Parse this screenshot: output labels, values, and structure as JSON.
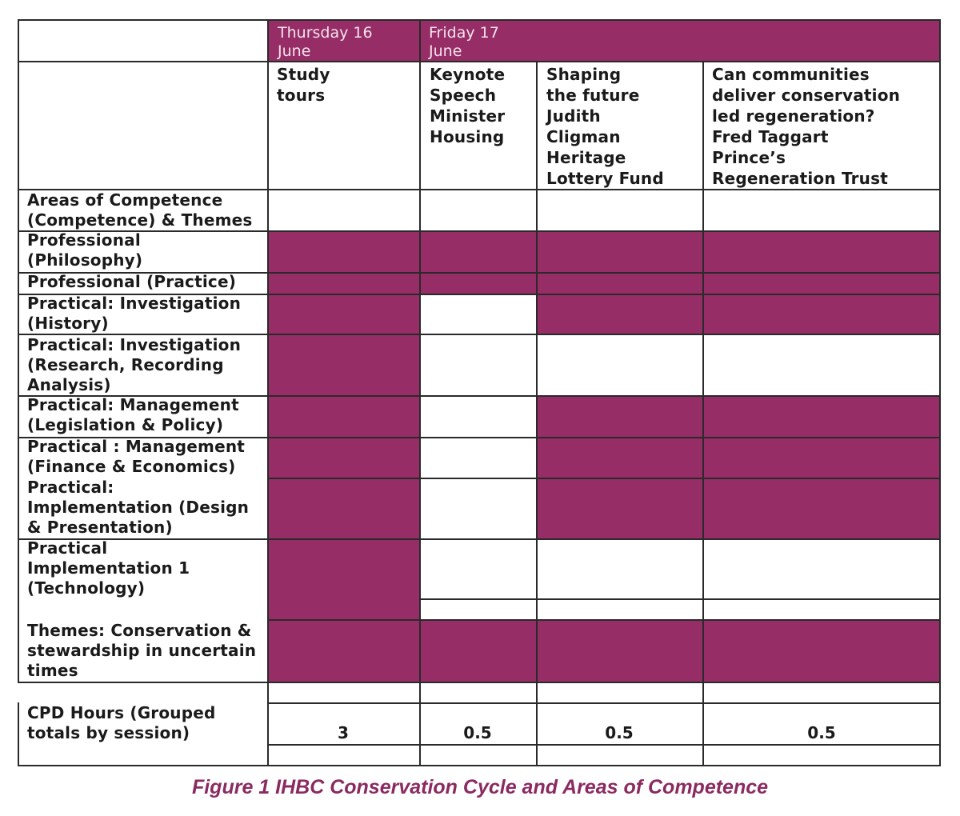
{
  "header": {
    "days": [
      "Thursday 16\nJune",
      "Friday 17\nJune"
    ]
  },
  "sessions": [
    "Study\ntours",
    "Keynote\nSpeech\nMinister\nHousing",
    "Shaping\nthe future\nJudith\nCligman\nHeritage\nLottery Fund",
    "Can communities\ndeliver conservation\nled regeneration?\nFred Taggart\nPrince’s\nRegeneration Trust"
  ],
  "rows": [
    {
      "label": "Areas of Competence\n(Competence) & Themes",
      "cells": [
        false,
        false,
        false,
        false
      ]
    },
    {
      "label": "Professional\n(Philosophy)",
      "cells": [
        true,
        true,
        true,
        true
      ]
    },
    {
      "label": "Professional (Practice)",
      "cells": [
        true,
        true,
        true,
        true
      ]
    },
    {
      "label": "Practical: Investigation\n(History)",
      "cells": [
        true,
        false,
        true,
        true
      ]
    },
    {
      "label": "Practical: Investigation\n(Research, Recording\nAnalysis)",
      "cells": [
        true,
        false,
        false,
        false
      ]
    },
    {
      "label": "Practical: Management\n(Legislation & Policy)",
      "cells": [
        true,
        false,
        true,
        true
      ]
    },
    {
      "label": "Practical : Management\n(Finance & Economics)",
      "cells": [
        true,
        false,
        true,
        true
      ]
    },
    {
      "label": "Practical:\nImplementation (Design\n& Presentation)",
      "cells": [
        true,
        false,
        true,
        true
      ]
    },
    {
      "label": "Practical\nImplementation 1\n(Technology)",
      "cells": [
        true,
        false,
        false,
        false
      ]
    },
    {
      "label": "Themes: Conservation &\nstewardship in uncertain\ntimes",
      "cells": [
        true,
        true,
        true,
        true
      ]
    }
  ],
  "cpd": {
    "label": "CPD Hours (Grouped\ntotals by session)",
    "values": [
      "3",
      "0.5",
      "0.5",
      "0.5"
    ]
  },
  "caption": "Figure 1 IHBC Conservation Cycle and Areas of Competence",
  "colors": {
    "highlight": "#962d66",
    "caption": "#8a2a61",
    "grid": "#2a2a2a"
  }
}
